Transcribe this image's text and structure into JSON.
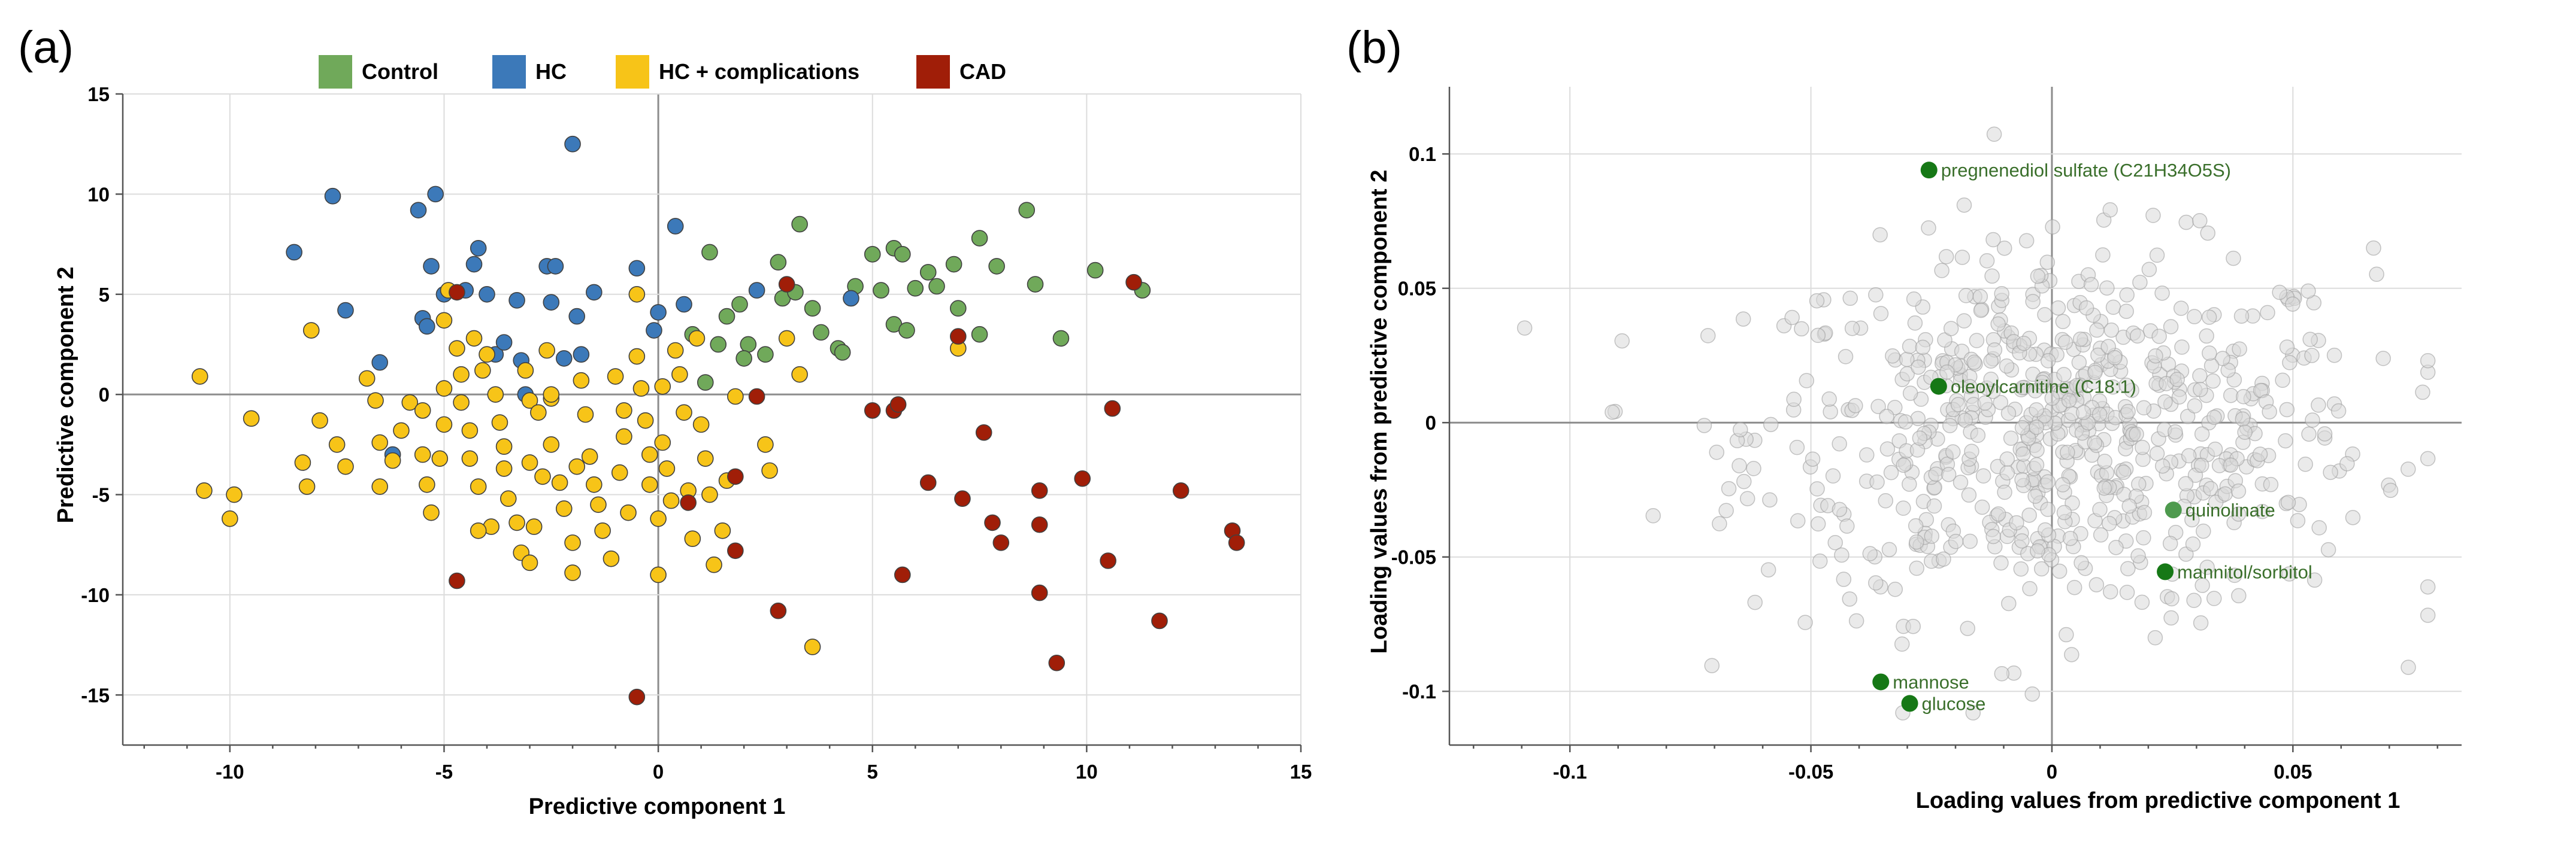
{
  "chart_data": [
    {
      "panel": "(a)",
      "type": "scatter",
      "title": "",
      "xlabel": "Predictive component 1",
      "ylabel": "Predictive component 2",
      "xlim": [
        -12.5,
        15
      ],
      "ylim": [
        -17.5,
        15
      ],
      "xticks": [
        -10,
        -5,
        0,
        5,
        10,
        15
      ],
      "xtick_labels": [
        "-10",
        "-5",
        "0",
        "5",
        "10",
        "15"
      ],
      "yticks": [
        15,
        10,
        5,
        0,
        -5,
        -10,
        -15
      ],
      "ytick_labels": [
        "15",
        "10",
        "5",
        "0",
        "-5",
        "-10",
        "-15"
      ],
      "grid": true,
      "legend": "top",
      "series": [
        {
          "name": "Control",
          "color": "#70a95a",
          "points": [
            [
              1.2,
              7.1
            ],
            [
              2.8,
              6.6
            ],
            [
              3.3,
              8.5
            ],
            [
              5.0,
              7.0
            ],
            [
              5.5,
              7.3
            ],
            [
              5.7,
              7.0
            ],
            [
              6.5,
              5.4
            ],
            [
              6.9,
              6.5
            ],
            [
              7.5,
              7.8
            ],
            [
              7.9,
              6.4
            ],
            [
              8.6,
              9.2
            ],
            [
              8.8,
              5.5
            ],
            [
              10.2,
              6.2
            ],
            [
              11.3,
              5.2
            ],
            [
              9.4,
              2.8
            ],
            [
              1.9,
              4.5
            ],
            [
              2.1,
              2.5
            ],
            [
              2.9,
              4.8
            ],
            [
              3.6,
              4.3
            ],
            [
              3.8,
              3.1
            ],
            [
              4.2,
              2.3
            ],
            [
              4.6,
              5.4
            ],
            [
              5.2,
              5.2
            ],
            [
              5.5,
              3.5
            ],
            [
              5.8,
              3.2
            ],
            [
              6.0,
              5.3
            ],
            [
              6.3,
              6.1
            ],
            [
              7.0,
              4.3
            ],
            [
              7.5,
              3.0
            ],
            [
              0.8,
              3.0
            ],
            [
              1.4,
              2.5
            ],
            [
              1.6,
              3.9
            ],
            [
              2.5,
              2.0
            ],
            [
              3.2,
              5.1
            ],
            [
              1.1,
              0.6
            ],
            [
              4.3,
              2.1
            ],
            [
              2.0,
              1.8
            ]
          ]
        },
        {
          "name": "HC",
          "color": "#3c79b9",
          "points": [
            [
              -2.0,
              12.5
            ],
            [
              -7.6,
              9.9
            ],
            [
              -8.5,
              7.1
            ],
            [
              -7.3,
              4.2
            ],
            [
              -5.2,
              10.0
            ],
            [
              -5.6,
              9.2
            ],
            [
              -5.3,
              6.4
            ],
            [
              -4.3,
              6.5
            ],
            [
              -4.2,
              7.3
            ],
            [
              -4.0,
              5.0
            ],
            [
              -2.6,
              6.4
            ],
            [
              -2.4,
              6.4
            ],
            [
              -1.5,
              5.1
            ],
            [
              -0.5,
              6.3
            ],
            [
              -3.3,
              4.7
            ],
            [
              -2.5,
              4.6
            ],
            [
              -1.8,
              2.0
            ],
            [
              -1.9,
              3.9
            ],
            [
              -3.8,
              2.0
            ],
            [
              -3.6,
              2.6
            ],
            [
              -3.2,
              1.7
            ],
            [
              -3.1,
              0.0
            ],
            [
              -4.5,
              5.2
            ],
            [
              -5.5,
              3.8
            ],
            [
              -5.4,
              3.4
            ],
            [
              -6.5,
              1.6
            ],
            [
              -6.2,
              -3.0
            ],
            [
              0.4,
              8.4
            ],
            [
              0.6,
              4.5
            ],
            [
              0.0,
              4.1
            ],
            [
              -0.1,
              3.2
            ],
            [
              2.3,
              5.2
            ],
            [
              4.5,
              4.8
            ],
            [
              -2.2,
              1.8
            ],
            [
              -5.0,
              5.0
            ]
          ]
        },
        {
          "name": "HC + complications",
          "color": "#f7c418",
          "points": [
            [
              -10.7,
              0.9
            ],
            [
              -10.6,
              -4.8
            ],
            [
              -10.0,
              -6.2
            ],
            [
              -9.9,
              -5.0
            ],
            [
              -9.5,
              -1.2
            ],
            [
              -8.3,
              -3.4
            ],
            [
              -8.2,
              -4.6
            ],
            [
              -8.1,
              3.2
            ],
            [
              -7.9,
              -1.3
            ],
            [
              -7.5,
              -2.5
            ],
            [
              -7.3,
              -3.6
            ],
            [
              -6.8,
              0.8
            ],
            [
              -6.6,
              -0.3
            ],
            [
              -6.5,
              -2.4
            ],
            [
              -6.5,
              -4.6
            ],
            [
              -6.2,
              -3.3
            ],
            [
              -6.0,
              -1.8
            ],
            [
              -5.8,
              -0.4
            ],
            [
              -5.5,
              -0.8
            ],
            [
              -5.5,
              -3.0
            ],
            [
              -5.4,
              -4.5
            ],
            [
              -5.3,
              -5.9
            ],
            [
              -5.0,
              -1.5
            ],
            [
              -5.1,
              -3.2
            ],
            [
              -5.0,
              3.7
            ],
            [
              -4.9,
              5.2
            ],
            [
              -4.7,
              2.3
            ],
            [
              -4.6,
              -0.4
            ],
            [
              -4.6,
              1.0
            ],
            [
              -4.4,
              -1.8
            ],
            [
              -4.4,
              -3.2
            ],
            [
              -4.2,
              -4.6
            ],
            [
              -4.1,
              1.2
            ],
            [
              -4.0,
              2.0
            ],
            [
              -3.8,
              0.0
            ],
            [
              -3.7,
              -1.4
            ],
            [
              -3.6,
              -2.6
            ],
            [
              -3.6,
              -3.7
            ],
            [
              -3.5,
              -5.2
            ],
            [
              -3.3,
              -6.4
            ],
            [
              -3.2,
              -7.9
            ],
            [
              -3.0,
              -8.4
            ],
            [
              -2.9,
              -6.6
            ],
            [
              -3.1,
              1.2
            ],
            [
              -3.0,
              -0.3
            ],
            [
              -2.7,
              -4.1
            ],
            [
              -2.6,
              2.2
            ],
            [
              -2.5,
              -0.2
            ],
            [
              -2.5,
              -2.5
            ],
            [
              -2.3,
              -4.4
            ],
            [
              -2.2,
              -5.7
            ],
            [
              -2.0,
              -7.4
            ],
            [
              -2.0,
              -8.9
            ],
            [
              -1.8,
              0.7
            ],
            [
              -1.7,
              -1.0
            ],
            [
              -1.6,
              -3.1
            ],
            [
              -1.5,
              -4.5
            ],
            [
              -1.4,
              -5.5
            ],
            [
              -1.3,
              -6.8
            ],
            [
              -1.1,
              -8.2
            ],
            [
              -0.9,
              -3.9
            ],
            [
              -0.8,
              -2.1
            ],
            [
              -0.8,
              -0.8
            ],
            [
              -0.7,
              -5.9
            ],
            [
              -0.5,
              1.9
            ],
            [
              -0.4,
              0.3
            ],
            [
              -0.3,
              -1.3
            ],
            [
              -0.2,
              -3.0
            ],
            [
              -0.2,
              -4.5
            ],
            [
              0.0,
              -6.2
            ],
            [
              0.0,
              -9.0
            ],
            [
              0.1,
              0.4
            ],
            [
              0.1,
              -2.4
            ],
            [
              0.2,
              -3.7
            ],
            [
              0.3,
              -5.3
            ],
            [
              0.4,
              2.2
            ],
            [
              0.5,
              1.0
            ],
            [
              0.6,
              -0.9
            ],
            [
              0.7,
              -4.8
            ],
            [
              0.8,
              -7.2
            ],
            [
              0.9,
              2.8
            ],
            [
              1.0,
              -1.5
            ],
            [
              1.1,
              -3.2
            ],
            [
              1.2,
              -5.0
            ],
            [
              1.3,
              -8.5
            ],
            [
              1.5,
              -6.8
            ],
            [
              1.6,
              -4.3
            ],
            [
              1.8,
              -0.1
            ],
            [
              2.5,
              -2.5
            ],
            [
              2.6,
              -3.8
            ],
            [
              3.0,
              2.8
            ],
            [
              3.3,
              1.0
            ],
            [
              3.6,
              -12.6
            ],
            [
              7.0,
              2.3
            ],
            [
              -1.9,
              -3.6
            ],
            [
              -4.3,
              2.8
            ],
            [
              -0.5,
              5.0
            ],
            [
              -5.0,
              0.3
            ],
            [
              -2.8,
              -0.9
            ],
            [
              -3.9,
              -6.6
            ],
            [
              -3.0,
              -3.4
            ],
            [
              -4.2,
              -6.8
            ],
            [
              -2.5,
              0.0
            ],
            [
              -1.0,
              0.9
            ]
          ]
        },
        {
          "name": "CAD",
          "color": "#a01e08",
          "points": [
            [
              -4.7,
              5.1
            ],
            [
              3.0,
              5.5
            ],
            [
              2.3,
              -0.1
            ],
            [
              5.0,
              -0.8
            ],
            [
              5.5,
              -0.8
            ],
            [
              5.6,
              -0.5
            ],
            [
              7.0,
              2.9
            ],
            [
              10.6,
              -0.7
            ],
            [
              11.1,
              5.6
            ],
            [
              1.8,
              -4.1
            ],
            [
              6.3,
              -4.4
            ],
            [
              7.1,
              -5.2
            ],
            [
              7.6,
              -1.9
            ],
            [
              7.8,
              -6.4
            ],
            [
              8.0,
              -7.4
            ],
            [
              8.9,
              -4.8
            ],
            [
              8.9,
              -6.5
            ],
            [
              9.9,
              -4.2
            ],
            [
              10.5,
              -8.3
            ],
            [
              12.2,
              -4.8
            ],
            [
              13.4,
              -6.8
            ],
            [
              13.5,
              -7.4
            ],
            [
              5.7,
              -9.0
            ],
            [
              1.8,
              -7.8
            ],
            [
              0.7,
              -5.4
            ],
            [
              8.9,
              -9.9
            ],
            [
              9.3,
              -13.4
            ],
            [
              11.7,
              -11.3
            ],
            [
              2.8,
              -10.8
            ],
            [
              -4.7,
              -9.3
            ],
            [
              -0.5,
              -15.1
            ]
          ]
        }
      ],
      "legend_entries": [
        "Control",
        "HC",
        "HC + complications",
        "CAD"
      ]
    },
    {
      "panel": "(b)",
      "type": "scatter",
      "title": "",
      "xlabel": "Loading values from predictive component 1",
      "ylabel": "Loading values from predictive component 2",
      "xlim": [
        -0.125,
        0.085
      ],
      "ylim": [
        -0.12,
        0.125
      ],
      "xticks": [
        -0.1,
        -0.05,
        0,
        0.05
      ],
      "xtick_labels": [
        "-0.1",
        "-0.05",
        "0",
        "0.05"
      ],
      "yticks": [
        0.1,
        0.05,
        0,
        -0.05,
        -0.1
      ],
      "ytick_labels": [
        "0.1",
        "0.05",
        "0",
        "-0.05",
        "-0.1"
      ],
      "grid": true,
      "background_point_color": "#bdbdbd",
      "background_point_count": 700,
      "highlighted": [
        {
          "label": "pregnenediol sulfate (C21H34O5S)",
          "x": -0.0255,
          "y": 0.094,
          "color": "#167816"
        },
        {
          "label": "oleoylcarnitine (C18:1)",
          "x": -0.0235,
          "y": 0.0135,
          "color": "#167816"
        },
        {
          "label": "quinolinate",
          "x": 0.0252,
          "y": -0.0325,
          "color": "#4e9a4e"
        },
        {
          "label": "mannitol/sorbitol",
          "x": 0.0235,
          "y": -0.0555,
          "color": "#167816"
        },
        {
          "label": "mannose",
          "x": -0.0355,
          "y": -0.0965,
          "color": "#167816"
        },
        {
          "label": "glucose",
          "x": -0.0295,
          "y": -0.1045,
          "color": "#167816"
        }
      ]
    }
  ]
}
